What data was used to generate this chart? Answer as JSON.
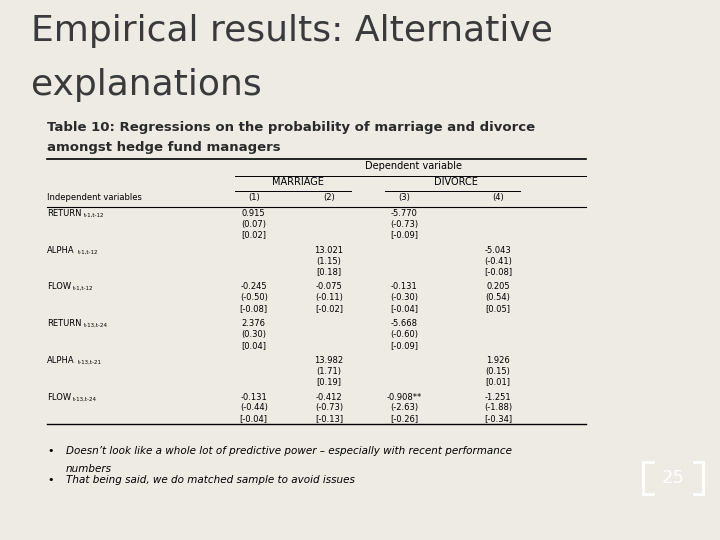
{
  "title_line1": "Empirical results: Alternative",
  "title_line2": "explanations",
  "subtitle_line1": "Table 10: Regressions on the probability of marriage and divorce",
  "subtitle_line2": "amongst hedge fund managers",
  "background_color": "#eeeae4",
  "sidebar_color": "#7a7060",
  "title_color": "#3a3a3a",
  "subtitle_color": "#2a2a2a",
  "title_fontsize": 26,
  "subtitle_fontsize": 9.5,
  "page_number": "25",
  "bullet_points": [
    [
      "Doesn’t look like a whole lot of predictive power – especially with recent performance",
      "numbers"
    ],
    [
      "That being said, we do matched sample to avoid issues"
    ]
  ],
  "table": {
    "rows": [
      {
        "label": "RETURN",
        "label_sub": "t-1,t-12",
        "values": [
          "0.915",
          "",
          "-5.770",
          ""
        ],
        "values2": [
          "(0.07)",
          "",
          "(-0.73)",
          ""
        ],
        "values3": [
          "[0.02]",
          "",
          "[-0.09]",
          ""
        ]
      },
      {
        "label": "ALPHA",
        "label_sub": "t-1,t-12",
        "values": [
          "",
          "13.021",
          "",
          "-5.043"
        ],
        "values2": [
          "",
          "(1.15)",
          "",
          "(-0.41)"
        ],
        "values3": [
          "",
          "[0.18]",
          "",
          "[-0.08]"
        ]
      },
      {
        "label": "FLOW",
        "label_sub": "t-1,t-12",
        "values": [
          "-0.245",
          "-0.075",
          "-0.131",
          "0.205"
        ],
        "values2": [
          "(-0.50)",
          "(-0.11)",
          "(-0.30)",
          "(0.54)"
        ],
        "values3": [
          "[-0.08]",
          "[-0.02]",
          "[-0.04]",
          "[0.05]"
        ]
      },
      {
        "label": "RETURN",
        "label_sub": "t-13,t-24",
        "values": [
          "2.376",
          "",
          "-5.668",
          ""
        ],
        "values2": [
          "(0.30)",
          "",
          "(-0.60)",
          ""
        ],
        "values3": [
          "[0.04]",
          "",
          "[-0.09]",
          ""
        ]
      },
      {
        "label": "ALPHA",
        "label_sub": "t-13,t-21",
        "values": [
          "",
          "13.982",
          "",
          "1.926"
        ],
        "values2": [
          "",
          "(1.71)",
          "",
          "(0.15)"
        ],
        "values3": [
          "",
          "[0.19]",
          "",
          "[0.01]"
        ]
      },
      {
        "label": "FLOW",
        "label_sub": "t-13,t-24",
        "values": [
          "-0.131",
          "-0.412",
          "-0.908**",
          "-1.251"
        ],
        "values2": [
          "(-0.44)",
          "(-0.73)",
          "(-2.63)",
          "(-1.88)"
        ],
        "values3": [
          "[-0.04]",
          "[-0.13]",
          "[-0.26]",
          "[-0.34]"
        ]
      }
    ]
  }
}
